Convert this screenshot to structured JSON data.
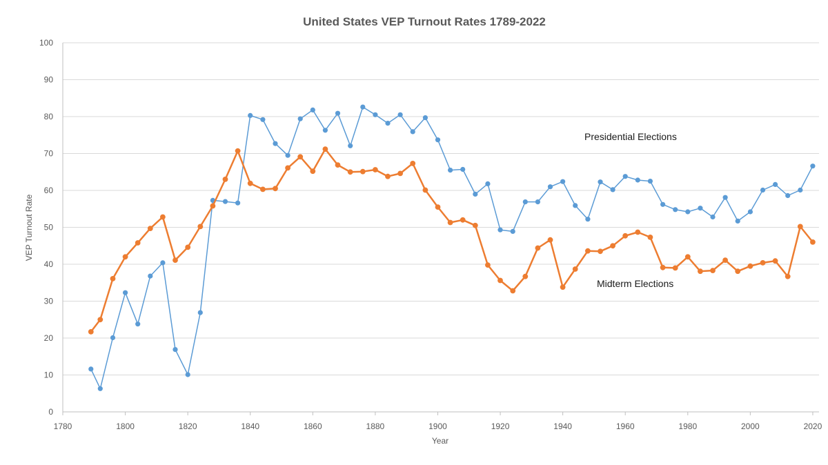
{
  "chart_data": {
    "type": "line",
    "title": "United States VEP Turnout Rates 1789-2022",
    "xlabel": "Year",
    "ylabel": "VEP Turnout Rate",
    "xlim": [
      1780,
      2022
    ],
    "ylim": [
      0,
      100
    ],
    "x_ticks": [
      1780,
      1800,
      1820,
      1840,
      1860,
      1880,
      1900,
      1920,
      1940,
      1960,
      1980,
      2000,
      2020
    ],
    "y_ticks": [
      0,
      10,
      20,
      30,
      40,
      50,
      60,
      70,
      80,
      90,
      100
    ],
    "grid": "horizontal",
    "colors": {
      "presidential": "#5b9bd5",
      "midterm": "#ed7d31"
    },
    "series": [
      {
        "name": "Presidential Elections",
        "x": [
          1789,
          1792,
          1796,
          1800,
          1804,
          1808,
          1812,
          1816,
          1820,
          1824,
          1828,
          1832,
          1836,
          1840,
          1844,
          1848,
          1852,
          1856,
          1860,
          1864,
          1868,
          1872,
          1876,
          1880,
          1884,
          1888,
          1892,
          1896,
          1900,
          1904,
          1908,
          1912,
          1916,
          1920,
          1924,
          1928,
          1932,
          1936,
          1940,
          1944,
          1948,
          1952,
          1956,
          1960,
          1964,
          1968,
          1972,
          1976,
          1980,
          1984,
          1988,
          1992,
          1996,
          2000,
          2004,
          2008,
          2012,
          2016,
          2020
        ],
        "values": [
          11.6,
          6.3,
          20.1,
          32.3,
          23.8,
          36.8,
          40.4,
          16.9,
          10.1,
          26.9,
          57.3,
          57.0,
          56.6,
          80.3,
          79.2,
          72.7,
          69.5,
          79.4,
          81.8,
          76.3,
          80.9,
          72.1,
          82.6,
          80.5,
          78.2,
          80.5,
          75.9,
          79.7,
          73.7,
          65.5,
          65.7,
          59.0,
          61.8,
          49.3,
          48.9,
          56.9,
          56.9,
          61.0,
          62.4,
          55.9,
          52.2,
          62.3,
          60.2,
          63.8,
          62.8,
          62.5,
          56.2,
          54.8,
          54.2,
          55.2,
          52.8,
          58.1,
          51.7,
          54.2,
          60.1,
          61.6,
          58.6,
          60.1,
          66.6
        ]
      },
      {
        "name": "Midterm Elections",
        "x": [
          1789,
          1792,
          1796,
          1800,
          1804,
          1808,
          1812,
          1816,
          1820,
          1824,
          1828,
          1832,
          1836,
          1840,
          1844,
          1848,
          1852,
          1856,
          1860,
          1864,
          1868,
          1872,
          1876,
          1880,
          1884,
          1888,
          1892,
          1896,
          1900,
          1904,
          1908,
          1912,
          1916,
          1920,
          1924,
          1928,
          1932,
          1936,
          1940,
          1944,
          1948,
          1952,
          1956,
          1960,
          1964,
          1968,
          1972,
          1976,
          1980,
          1984,
          1988,
          1992,
          1996,
          2000,
          2004,
          2008,
          2012,
          2016,
          2020
        ],
        "values": [
          21.7,
          25.0,
          36.1,
          42.0,
          45.8,
          49.7,
          52.8,
          41.1,
          44.6,
          50.2,
          55.8,
          63.0,
          70.7,
          61.9,
          60.3,
          60.5,
          66.1,
          69.1,
          65.2,
          71.2,
          66.9,
          65.0,
          65.1,
          65.6,
          63.8,
          64.6,
          67.3,
          60.1,
          55.5,
          51.3,
          52.0,
          50.5,
          39.8,
          35.6,
          32.8,
          36.7,
          44.4,
          46.6,
          33.8,
          38.7,
          43.6,
          43.5,
          45.0,
          47.7,
          48.7,
          47.3,
          39.1,
          39.0,
          42.0,
          38.1,
          38.3,
          41.1,
          38.1,
          39.5,
          40.4,
          40.9,
          36.7,
          50.2,
          46.0
        ]
      }
    ],
    "annotations": [
      "Presidential Elections",
      "Midterm Elections"
    ]
  }
}
